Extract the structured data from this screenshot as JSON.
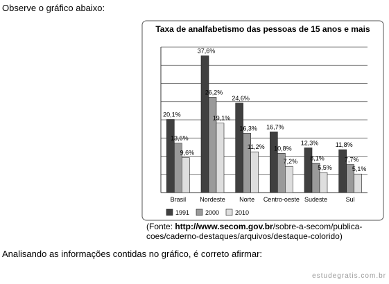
{
  "intro": "Observe o gráfico abaixo:",
  "chart_data": {
    "type": "bar",
    "title": "Taxa de analfabetismo das pessoas de 15 anos e mais",
    "categories": [
      "Brasil",
      "Nordeste",
      "Norte",
      "Centro-oeste",
      "Sudeste",
      "Sul"
    ],
    "series": [
      {
        "name": "1991",
        "color": "#404040",
        "values": [
          20.1,
          37.6,
          24.6,
          16.7,
          12.3,
          11.8
        ],
        "value_labels": [
          "20,1%",
          "37,6%",
          "24,6%",
          "16,7%",
          "12,3%",
          "11,8%"
        ]
      },
      {
        "name": "2000",
        "color": "#9a9a9a",
        "values": [
          13.6,
          26.2,
          16.3,
          10.8,
          8.1,
          7.7
        ],
        "value_labels": [
          "13,6%",
          "26,2%",
          "16,3%",
          "10,8%",
          "8,1%",
          "7,7%"
        ]
      },
      {
        "name": "2010",
        "color": "#dedede",
        "values": [
          9.6,
          19.1,
          11.2,
          7.2,
          5.5,
          5.1
        ],
        "value_labels": [
          "9,6%",
          "19,1%",
          "11,2%",
          "7,2%",
          "5,5%",
          "5,1%"
        ]
      }
    ],
    "ylim": [
      0,
      40
    ],
    "yticks": [
      0,
      5,
      10,
      15,
      20,
      25,
      30,
      35,
      40
    ],
    "grid": true,
    "legend": "bottom"
  },
  "source": {
    "prefix": "(Fonte: ",
    "url": "http://www.secom.gov.br",
    "rest": "/sobre-a-secom/publica-",
    "line2": "coes/caderno-destaques/arquivos/destaque-colorido)"
  },
  "question": "Analisando as informações contidas no gráfico, é correto afirmar:",
  "watermark": "estudegratis.com.br"
}
